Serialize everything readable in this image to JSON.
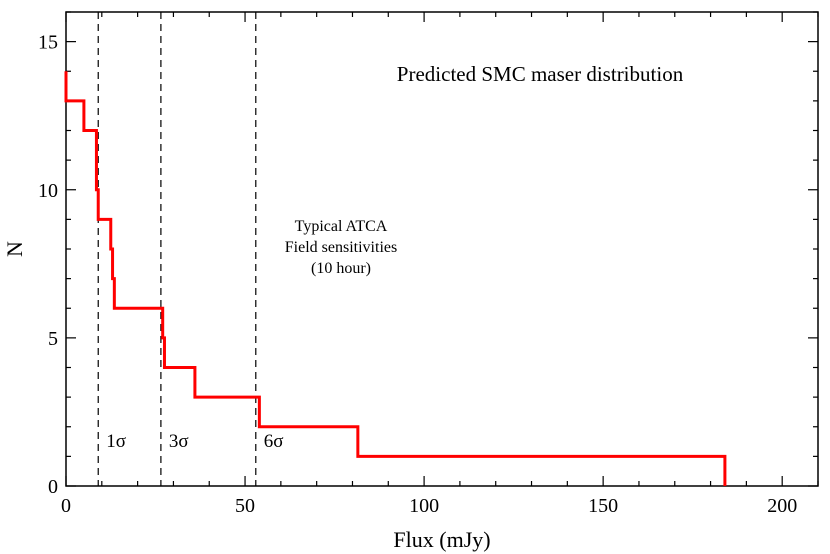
{
  "chart_data": {
    "type": "line",
    "title": "Predicted SMC maser distribution",
    "xlabel": "Flux (mJy)",
    "ylabel": "N",
    "xlim": [
      0,
      210
    ],
    "ylim": [
      0,
      16
    ],
    "xticks": [
      0,
      50,
      100,
      150,
      200
    ],
    "yticks": [
      0,
      5,
      10,
      15
    ],
    "grid": false,
    "series": [
      {
        "color": "#ff0000",
        "step": true,
        "points": [
          [
            0,
            14
          ],
          [
            0,
            13
          ],
          [
            5,
            13
          ],
          [
            5,
            12
          ],
          [
            8.5,
            12
          ],
          [
            8.5,
            10
          ],
          [
            9,
            10
          ],
          [
            9,
            9
          ],
          [
            12.5,
            9
          ],
          [
            12.5,
            8
          ],
          [
            13,
            8
          ],
          [
            13,
            7
          ],
          [
            13.5,
            7
          ],
          [
            13.5,
            6
          ],
          [
            27,
            6
          ],
          [
            27,
            5
          ],
          [
            27.5,
            5
          ],
          [
            27.5,
            4
          ],
          [
            36,
            4
          ],
          [
            36,
            3
          ],
          [
            54,
            3
          ],
          [
            54,
            2
          ],
          [
            81.5,
            2
          ],
          [
            81.5,
            1
          ],
          [
            184,
            1
          ],
          [
            184,
            0
          ]
        ]
      }
    ],
    "reference_lines": [
      {
        "x": 9,
        "label": "1σ",
        "style": "dashed"
      },
      {
        "x": 26.5,
        "label": "3σ",
        "style": "dashed"
      },
      {
        "x": 53,
        "label": "6σ",
        "style": "dashed"
      }
    ],
    "annotation": [
      "Typical  ATCA",
      "Field sensitivities",
      "(10 hour)"
    ]
  }
}
